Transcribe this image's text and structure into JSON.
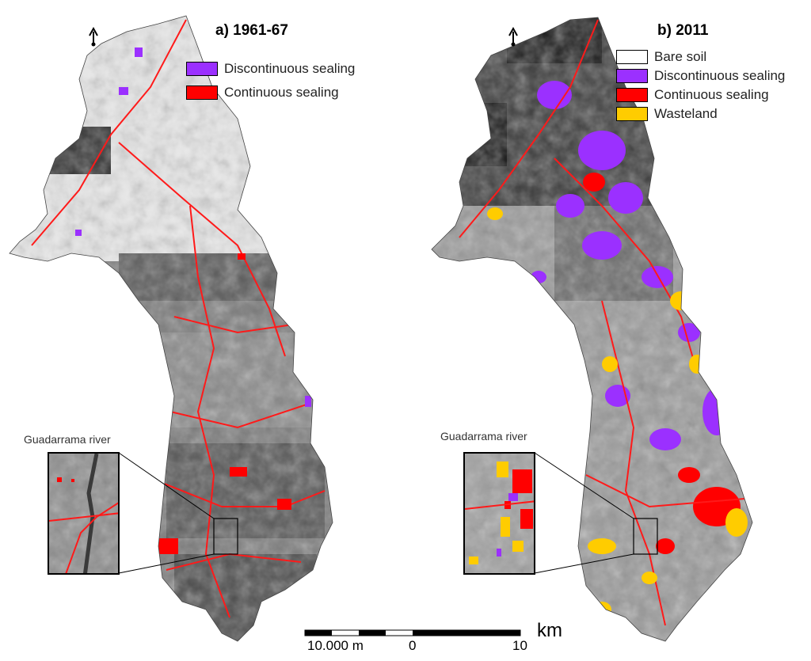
{
  "panels": [
    {
      "title": "a) 1961-67",
      "legend": [
        {
          "label": "Discontinuous sealing",
          "color": "#9b30ff"
        },
        {
          "label": "Continuous sealing",
          "color": "#ff0000"
        }
      ],
      "river_label": "Guadarrama river"
    },
    {
      "title": "b) 2011",
      "legend": [
        {
          "label": "Bare soil",
          "color": "#ffffff"
        },
        {
          "label": "Discontinuous sealing",
          "color": "#9b30ff"
        },
        {
          "label": "Continuous sealing",
          "color": "#ff0000"
        },
        {
          "label": "Wasteland",
          "color": "#ffcc00"
        }
      ],
      "river_label": "Guadarrama river"
    }
  ],
  "scale_bar": {
    "left_label": "10.000 m",
    "mid_label": "0",
    "right_label": "10",
    "unit": "km"
  },
  "north_arrow_icon": "north-arrow-icon"
}
